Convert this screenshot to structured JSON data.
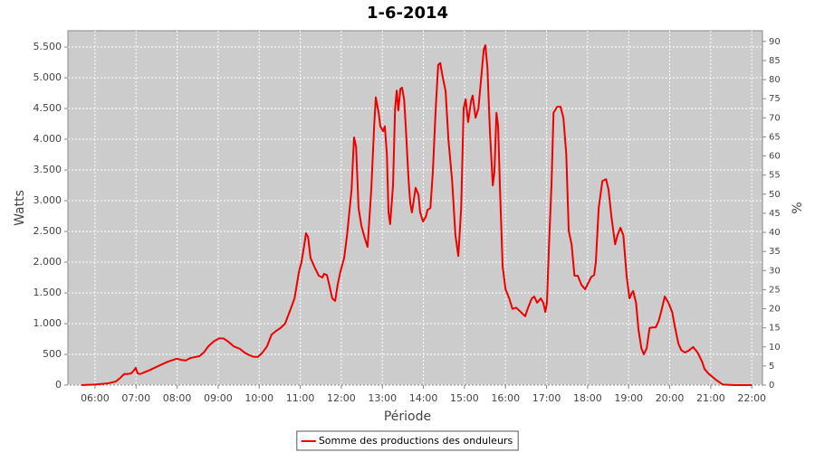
{
  "chart_data": {
    "type": "line",
    "title": "1-6-2014",
    "x_label": "Période",
    "y_label": "Watts",
    "y2_label": "%",
    "grid": true,
    "legend": "bottom",
    "background": "#cccccc",
    "xlim": [
      5.34,
      22.26
    ],
    "xticks": [
      {
        "value": 6,
        "label": "06:00"
      },
      {
        "value": 7,
        "label": "07:00"
      },
      {
        "value": 8,
        "label": "08:00"
      },
      {
        "value": 9,
        "label": "09:00"
      },
      {
        "value": 10,
        "label": "10:00"
      },
      {
        "value": 11,
        "label": "11:00"
      },
      {
        "value": 12,
        "label": "12:00"
      },
      {
        "value": 13,
        "label": "13:00"
      },
      {
        "value": 14,
        "label": "14:00"
      },
      {
        "value": 15,
        "label": "15:00"
      },
      {
        "value": 16,
        "label": "16:00"
      },
      {
        "value": 17,
        "label": "17:00"
      },
      {
        "value": 18,
        "label": "18:00"
      },
      {
        "value": 19,
        "label": "19:00"
      },
      {
        "value": 20,
        "label": "20:00"
      },
      {
        "value": 21,
        "label": "21:00"
      },
      {
        "value": 22,
        "label": "22:00"
      }
    ],
    "ylim": [
      0,
      5765
    ],
    "yticks": [
      0,
      500,
      {
        "value": 1000,
        "label": "1.000"
      },
      {
        "value": 1500,
        "label": "1.500"
      },
      {
        "value": 2000,
        "label": "2.000"
      },
      {
        "value": 2500,
        "label": "2.500"
      },
      {
        "value": 3000,
        "label": "3.000"
      },
      {
        "value": 3500,
        "label": "3.500"
      },
      {
        "value": 4000,
        "label": "4.000"
      },
      {
        "value": 4500,
        "label": "4.500"
      },
      {
        "value": 5000,
        "label": "5.000"
      },
      {
        "value": 5500,
        "label": "5.500"
      }
    ],
    "y2lim": [
      0,
      92.8
    ],
    "y2ticks": [
      0,
      5,
      10,
      15,
      20,
      25,
      30,
      35,
      40,
      45,
      50,
      55,
      60,
      65,
      70,
      75,
      80,
      85,
      90
    ],
    "x": [
      5.67,
      6.0,
      6.33,
      6.51,
      6.62,
      6.71,
      6.77,
      6.88,
      6.95,
      6.99,
      7.04,
      7.1,
      7.21,
      7.32,
      7.54,
      7.77,
      7.99,
      8.1,
      8.21,
      8.32,
      8.54,
      8.65,
      8.76,
      8.89,
      9.02,
      9.13,
      9.24,
      9.38,
      9.53,
      9.64,
      9.75,
      9.86,
      9.97,
      10.08,
      10.19,
      10.3,
      10.41,
      10.52,
      10.63,
      10.75,
      10.86,
      10.97,
      11.03,
      11.1,
      11.14,
      11.19,
      11.25,
      11.34,
      11.45,
      11.54,
      11.58,
      11.65,
      11.72,
      11.78,
      11.85,
      11.91,
      11.98,
      12.07,
      12.14,
      12.25,
      12.31,
      12.36,
      12.42,
      12.49,
      12.58,
      12.64,
      12.73,
      12.8,
      12.84,
      12.91,
      12.95,
      13.02,
      13.06,
      13.11,
      13.15,
      13.19,
      13.26,
      13.31,
      13.35,
      13.39,
      13.44,
      13.48,
      13.53,
      13.57,
      13.64,
      13.68,
      13.72,
      13.77,
      13.81,
      13.88,
      13.92,
      13.99,
      14.06,
      14.1,
      14.17,
      14.23,
      14.3,
      14.36,
      14.41,
      14.47,
      14.54,
      14.61,
      14.7,
      14.78,
      14.85,
      14.92,
      14.98,
      15.03,
      15.09,
      15.16,
      15.2,
      15.27,
      15.34,
      15.4,
      15.47,
      15.51,
      15.56,
      15.62,
      15.69,
      15.73,
      15.78,
      15.82,
      15.87,
      15.93,
      16.0,
      16.09,
      16.17,
      16.26,
      16.37,
      16.48,
      16.55,
      16.64,
      16.7,
      16.77,
      16.86,
      16.92,
      16.97,
      17.01,
      17.06,
      17.12,
      17.17,
      17.26,
      17.34,
      17.41,
      17.48,
      17.54,
      17.61,
      17.68,
      17.76,
      17.85,
      17.94,
      18.03,
      18.09,
      18.16,
      18.2,
      18.27,
      18.36,
      18.45,
      18.51,
      18.58,
      18.67,
      18.73,
      18.8,
      18.87,
      18.95,
      19.02,
      19.07,
      19.11,
      19.18,
      19.24,
      19.31,
      19.37,
      19.44,
      19.51,
      19.6,
      19.66,
      19.73,
      19.79,
      19.88,
      19.97,
      20.06,
      20.12,
      20.21,
      20.28,
      20.37,
      20.46,
      20.57,
      20.68,
      20.79,
      20.85,
      20.94,
      21.12,
      21.29,
      21.56,
      22.0
    ],
    "series": [
      {
        "name": "Somme des productions des onduleurs",
        "color": "#ee0000",
        "values": [
          0,
          10,
          30,
          60,
          120,
          180,
          180,
          190,
          240,
          280,
          190,
          180,
          210,
          240,
          310,
          380,
          430,
          410,
          400,
          440,
          470,
          530,
          630,
          710,
          760,
          760,
          710,
          630,
          590,
          530,
          490,
          460,
          460,
          530,
          630,
          820,
          880,
          930,
          1000,
          1210,
          1410,
          1850,
          2000,
          2290,
          2470,
          2410,
          2070,
          1930,
          1780,
          1750,
          1810,
          1790,
          1590,
          1410,
          1370,
          1630,
          1850,
          2070,
          2440,
          3180,
          4030,
          3880,
          2880,
          2590,
          2370,
          2250,
          3180,
          4210,
          4680,
          4430,
          4210,
          4130,
          4210,
          3760,
          2810,
          2620,
          3250,
          4500,
          4790,
          4470,
          4820,
          4840,
          4650,
          4210,
          3320,
          2960,
          2810,
          3030,
          3210,
          3100,
          2810,
          2660,
          2740,
          2850,
          2880,
          3470,
          4500,
          5210,
          5240,
          5010,
          4790,
          3990,
          3320,
          2440,
          2100,
          2880,
          4500,
          4650,
          4280,
          4620,
          4710,
          4350,
          4500,
          4940,
          5460,
          5530,
          5160,
          4130,
          3250,
          3470,
          4430,
          4210,
          3100,
          1930,
          1560,
          1410,
          1240,
          1260,
          1190,
          1120,
          1260,
          1410,
          1440,
          1340,
          1410,
          1340,
          1190,
          1340,
          2290,
          3250,
          4430,
          4530,
          4530,
          4350,
          3760,
          2510,
          2290,
          1780,
          1780,
          1630,
          1560,
          1680,
          1760,
          1790,
          2000,
          2880,
          3320,
          3350,
          3180,
          2740,
          2290,
          2440,
          2560,
          2440,
          1780,
          1410,
          1490,
          1530,
          1340,
          900,
          600,
          500,
          600,
          930,
          940,
          940,
          1040,
          1190,
          1440,
          1340,
          1190,
          970,
          680,
          570,
          530,
          560,
          620,
          530,
          380,
          260,
          190,
          90,
          10,
          0,
          0
        ]
      }
    ]
  }
}
